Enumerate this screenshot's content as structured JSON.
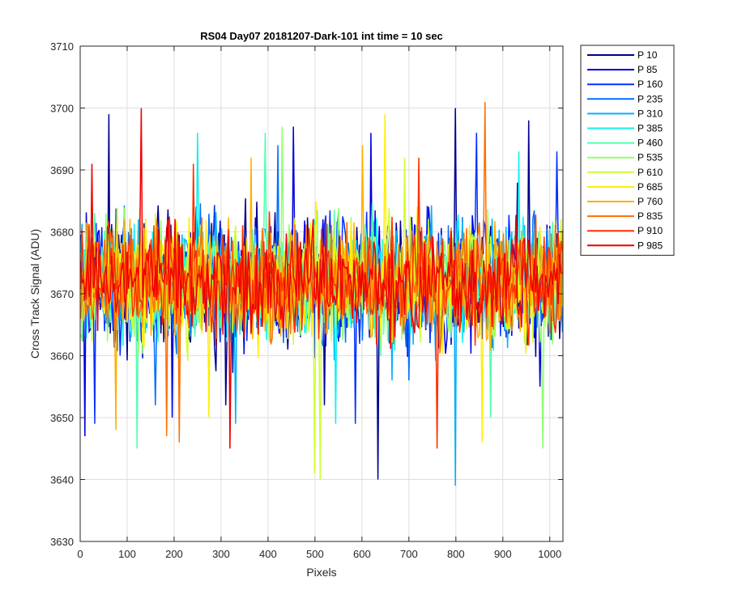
{
  "chart_data": {
    "type": "line",
    "title": "RS04 Day07 20181207-Dark-101 int time = 10 sec",
    "xlabel": "Pixels",
    "ylabel": "Cross Track Signal (ADU)",
    "xlim": [
      0,
      1028
    ],
    "ylim": [
      3630,
      3710
    ],
    "xticks": [
      0,
      100,
      200,
      300,
      400,
      500,
      600,
      700,
      800,
      900,
      1000
    ],
    "yticks": [
      3630,
      3640,
      3650,
      3660,
      3670,
      3680,
      3690,
      3700,
      3710
    ],
    "grid": true,
    "legend_position": "outside-right",
    "x": {
      "start": 1,
      "end": 1028,
      "step": 3
    },
    "series": [
      {
        "name": "P 10",
        "color": "#00008f",
        "center": 3672,
        "spread": 9.5,
        "outliers": [
          [
            60,
            3699
          ],
          [
            310,
            3652
          ],
          [
            520,
            3652
          ],
          [
            635,
            3640
          ],
          [
            800,
            3700
          ],
          [
            955,
            3698
          ]
        ]
      },
      {
        "name": "P 85",
        "color": "#0000df",
        "center": 3672,
        "spread": 9.0,
        "outliers": [
          [
            10,
            3647
          ],
          [
            195,
            3650
          ],
          [
            455,
            3697
          ],
          [
            620,
            3696
          ],
          [
            980,
            3655
          ]
        ]
      },
      {
        "name": "P 160",
        "color": "#0030ff",
        "center": 3672,
        "spread": 8.5,
        "outliers": [
          [
            30,
            3649
          ],
          [
            585,
            3649
          ],
          [
            845,
            3696
          ],
          [
            1015,
            3693
          ]
        ]
      },
      {
        "name": "P 235",
        "color": "#0070ff",
        "center": 3672,
        "spread": 8.5,
        "outliers": [
          [
            160,
            3652
          ],
          [
            420,
            3694
          ],
          [
            700,
            3656
          ]
        ]
      },
      {
        "name": "P 310",
        "color": "#00b0ff",
        "center": 3672,
        "spread": 8.5,
        "outliers": [
          [
            330,
            3649
          ],
          [
            665,
            3656
          ],
          [
            800,
            3639
          ]
        ]
      },
      {
        "name": "P 385",
        "color": "#10f0ef",
        "center": 3672,
        "spread": 8.0,
        "outliers": [
          [
            250,
            3696
          ],
          [
            545,
            3649
          ],
          [
            935,
            3693
          ]
        ]
      },
      {
        "name": "P 460",
        "color": "#50ffaf",
        "center": 3672,
        "spread": 8.0,
        "outliers": [
          [
            120,
            3645
          ],
          [
            395,
            3696
          ],
          [
            875,
            3650
          ]
        ]
      },
      {
        "name": "P 535",
        "color": "#90ff6f",
        "center": 3672,
        "spread": 8.0,
        "outliers": [
          [
            55,
            3683
          ],
          [
            430,
            3697
          ],
          [
            985,
            3645
          ]
        ]
      },
      {
        "name": "P 610",
        "color": "#cfff30",
        "center": 3672,
        "spread": 8.0,
        "outliers": [
          [
            500,
            3641
          ],
          [
            510,
            3640
          ],
          [
            690,
            3692
          ]
        ]
      },
      {
        "name": "P 685",
        "color": "#ffef00",
        "center": 3672,
        "spread": 8.0,
        "outliers": [
          [
            275,
            3650
          ],
          [
            650,
            3699
          ],
          [
            855,
            3646
          ]
        ]
      },
      {
        "name": "P 760",
        "color": "#ffaf00",
        "center": 3672,
        "spread": 8.0,
        "outliers": [
          [
            75,
            3648
          ],
          [
            365,
            3692
          ],
          [
            600,
            3694
          ]
        ]
      },
      {
        "name": "P 835",
        "color": "#ff7000",
        "center": 3672,
        "spread": 7.5,
        "outliers": [
          [
            185,
            3647
          ],
          [
            210,
            3646
          ],
          [
            862,
            3701
          ]
        ]
      },
      {
        "name": "P 910",
        "color": "#ff3000",
        "center": 3672,
        "spread": 7.5,
        "outliers": [
          [
            240,
            3691
          ],
          [
            760,
            3645
          ],
          [
            720,
            3692
          ]
        ]
      },
      {
        "name": "P 985",
        "color": "#ef0000",
        "center": 3672,
        "spread": 7.0,
        "outliers": [
          [
            130,
            3700
          ],
          [
            320,
            3645
          ],
          [
            25,
            3691
          ]
        ]
      }
    ]
  }
}
